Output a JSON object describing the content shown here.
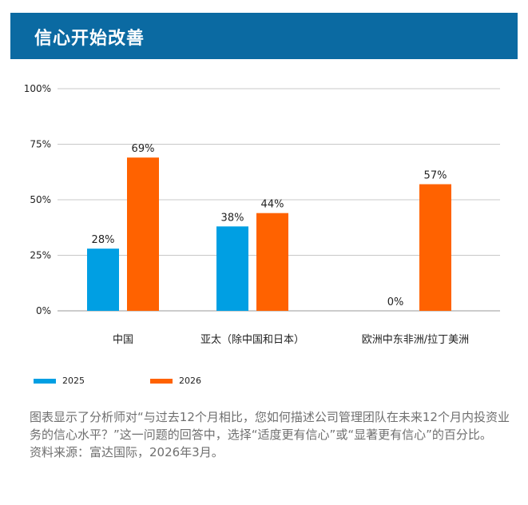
{
  "header": {
    "title": "信心开始改善"
  },
  "chart_data": {
    "type": "bar",
    "categories": [
      "中国",
      "亚太（除中国和日本）",
      "欧洲中东非洲/拉丁美洲"
    ],
    "series": [
      {
        "name": "2025",
        "values": [
          28,
          38,
          0
        ],
        "labels": [
          "28%",
          "38%",
          "0%"
        ],
        "color": "#009fe3"
      },
      {
        "name": "2026",
        "values": [
          69,
          44,
          57
        ],
        "labels": [
          "69%",
          "44%",
          "57%"
        ],
        "color": "#ff6200"
      }
    ],
    "ylim": [
      0,
      100
    ],
    "yticks": [
      0,
      25,
      50,
      75,
      100
    ],
    "ytick_labels": [
      "0%",
      "25%",
      "50%",
      "75%",
      "100%"
    ],
    "grid": true,
    "legend_position": "bottom-left"
  },
  "note": {
    "description": "图表显示了分析师对“与过去12个月相比，您如何描述公司管理团队在未来12个月内投资业务的信心水平？”这一问题的回答中，选择“适度更有信心”或“显著更有信心”的百分比。",
    "source": "资料来源：富达国际，2026年3月。"
  }
}
